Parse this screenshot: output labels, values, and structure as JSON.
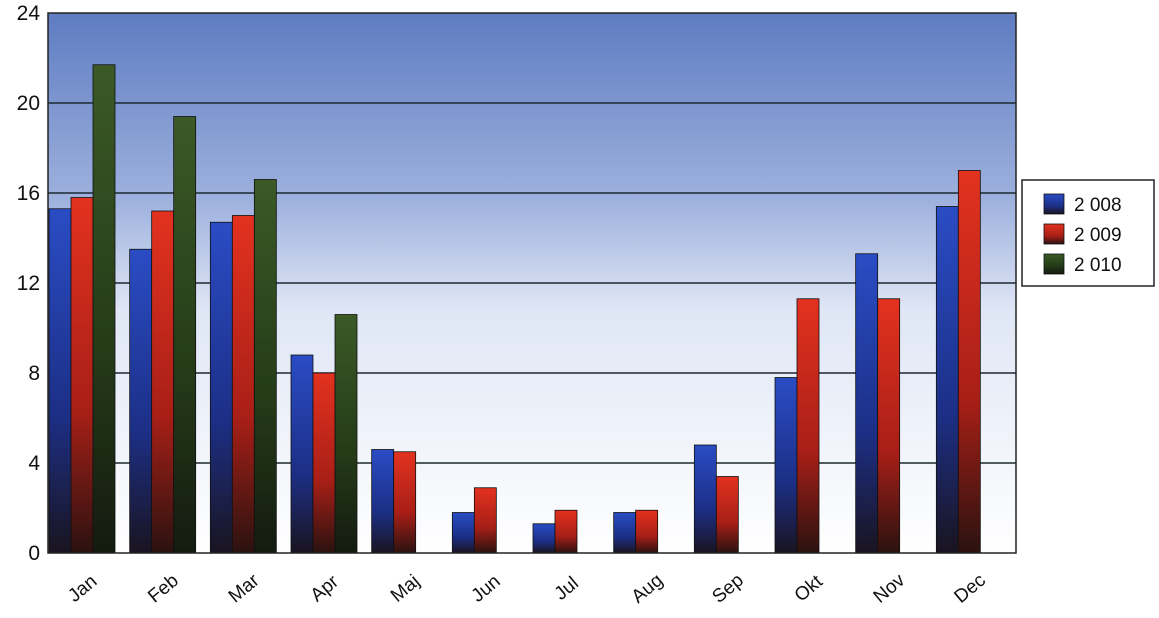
{
  "chart_data": {
    "type": "bar",
    "categories": [
      "Jan",
      "Feb",
      "Mar",
      "Apr",
      "Maj",
      "Jun",
      "Jul",
      "Aug",
      "Sep",
      "Okt",
      "Nov",
      "Dec"
    ],
    "series": [
      {
        "name": "2 008",
        "color": "#1f3fb0",
        "values": [
          15.3,
          13.5,
          14.7,
          8.8,
          4.6,
          1.8,
          1.3,
          1.8,
          4.8,
          7.8,
          13.3,
          15.4
        ]
      },
      {
        "name": "2 009",
        "color": "#d62a1e",
        "values": [
          15.8,
          15.2,
          15.0,
          8.0,
          4.5,
          2.9,
          1.9,
          1.9,
          3.4,
          11.3,
          11.3,
          17.0
        ]
      },
      {
        "name": "2 010",
        "color": "#2e4a1e",
        "values": [
          21.7,
          19.4,
          16.6,
          10.6,
          null,
          null,
          null,
          null,
          null,
          null,
          null,
          null
        ]
      }
    ],
    "yticks": [
      "0",
      "4",
      "8",
      "12",
      "16",
      "20",
      "24"
    ],
    "ylim": [
      0,
      24
    ],
    "grid": true,
    "legend_position": "right",
    "title": "",
    "xlabel": "",
    "ylabel": ""
  }
}
